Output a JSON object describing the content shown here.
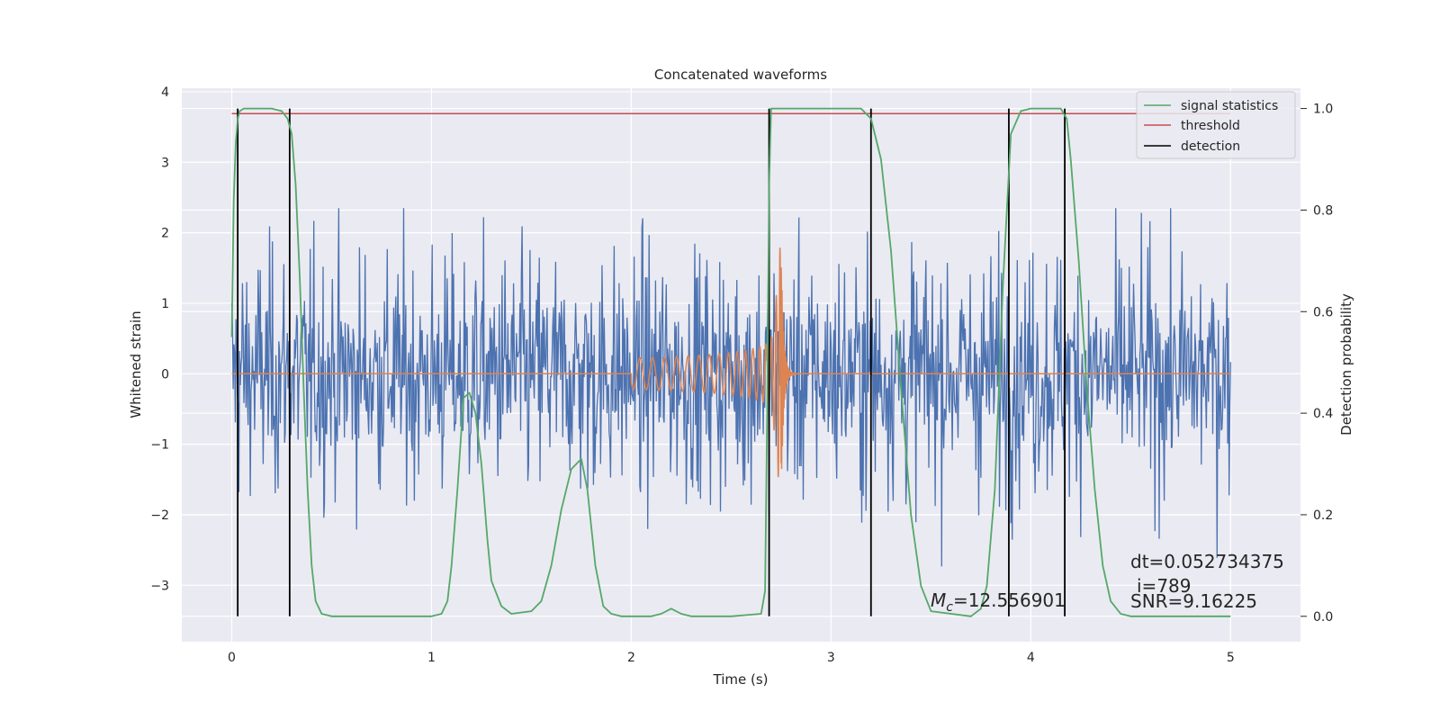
{
  "chart_data": {
    "type": "line",
    "title": "Concatenated waveforms",
    "xlabel": "Time (s)",
    "ylabel": "Whitened strain",
    "y2label": "Detection probability",
    "xlim": [
      -0.25,
      5.35
    ],
    "ylim": [
      -3.8,
      4.05
    ],
    "y2lim": [
      -0.05,
      1.04
    ],
    "x_ticks": [
      0,
      1,
      2,
      3,
      4,
      5
    ],
    "y_ticks": [
      -3,
      -2,
      -1,
      0,
      1,
      2,
      3,
      4
    ],
    "y2_ticks": [
      0.0,
      0.2,
      0.4,
      0.6,
      0.8,
      1.0
    ],
    "grid": true,
    "legend_position": "top-right",
    "colors": {
      "strain": "#4c72b0",
      "template": "#dd8452",
      "signal_statistics": "#55a868",
      "threshold": "#c44e52",
      "detection": "#000000"
    },
    "series": [
      {
        "name": "",
        "axis": "left",
        "description_kind": "noisy strain",
        "x_range": [
          0,
          5
        ],
        "sample_count": 1400,
        "amplitude": 0.75,
        "envelope_max": 2.35
      },
      {
        "name": "",
        "axis": "left",
        "description_kind": "chirp template",
        "x_start": 2.0,
        "x_merger": 2.75,
        "x_end": 3.0,
        "peak_amplitude": 1.8
      },
      {
        "name": "signal statistics",
        "axis": "right",
        "x": [
          0,
          0.01,
          0.02,
          0.03,
          0.04,
          0.06,
          0.1,
          0.15,
          0.2,
          0.25,
          0.28,
          0.3,
          0.32,
          0.34,
          0.36,
          0.38,
          0.4,
          0.42,
          0.45,
          0.5,
          0.6,
          0.8,
          1.0,
          1.05,
          1.08,
          1.1,
          1.13,
          1.16,
          1.19,
          1.22,
          1.25,
          1.28,
          1.3,
          1.35,
          1.4,
          1.5,
          1.55,
          1.6,
          1.65,
          1.7,
          1.75,
          1.78,
          1.82,
          1.86,
          1.9,
          1.95,
          2.0,
          2.1,
          2.15,
          2.2,
          2.25,
          2.3,
          2.5,
          2.65,
          2.67,
          2.68,
          2.69,
          2.7,
          2.75,
          3.0,
          3.15,
          3.2,
          3.25,
          3.3,
          3.35,
          3.4,
          3.45,
          3.5,
          3.7,
          3.75,
          3.78,
          3.82,
          3.86,
          3.9,
          3.95,
          4.0,
          4.1,
          4.15,
          4.18,
          4.2,
          4.24,
          4.28,
          4.32,
          4.36,
          4.4,
          4.45,
          4.5,
          4.6,
          4.8,
          5.0
        ],
        "values": [
          0.55,
          0.82,
          0.93,
          0.98,
          0.995,
          1.0,
          1.0,
          1.0,
          1.0,
          0.995,
          0.98,
          0.95,
          0.85,
          0.67,
          0.45,
          0.25,
          0.1,
          0.03,
          0.005,
          0.0,
          0.0,
          0.0,
          0.0,
          0.005,
          0.03,
          0.1,
          0.25,
          0.43,
          0.44,
          0.4,
          0.3,
          0.15,
          0.07,
          0.02,
          0.005,
          0.01,
          0.03,
          0.1,
          0.21,
          0.29,
          0.31,
          0.25,
          0.1,
          0.02,
          0.005,
          0.0,
          0.0,
          0.0,
          0.005,
          0.015,
          0.005,
          0.0,
          0.0,
          0.005,
          0.05,
          0.4,
          0.85,
          1.0,
          1.0,
          1.0,
          1.0,
          0.98,
          0.9,
          0.72,
          0.45,
          0.2,
          0.06,
          0.01,
          0.0,
          0.015,
          0.06,
          0.25,
          0.65,
          0.95,
          0.995,
          1.0,
          1.0,
          1.0,
          0.98,
          0.9,
          0.7,
          0.45,
          0.25,
          0.1,
          0.03,
          0.005,
          0.0,
          0.0,
          0.0,
          0.0
        ]
      },
      {
        "name": "threshold",
        "axis": "right",
        "value": 0.99,
        "x_range": [
          0,
          5
        ]
      },
      {
        "name": "detection",
        "axis": "right",
        "x": [
          0.03,
          0.29,
          2.69,
          3.2,
          3.89,
          4.17
        ],
        "range": [
          0.0,
          1.0
        ]
      }
    ],
    "annotations": {
      "dt": "dt=0.052734375",
      "i": "i=789",
      "snr": "SNR=9.16225",
      "mc_symbol": "M",
      "mc_sub": "c",
      "mc_value": "=12.556901"
    }
  }
}
